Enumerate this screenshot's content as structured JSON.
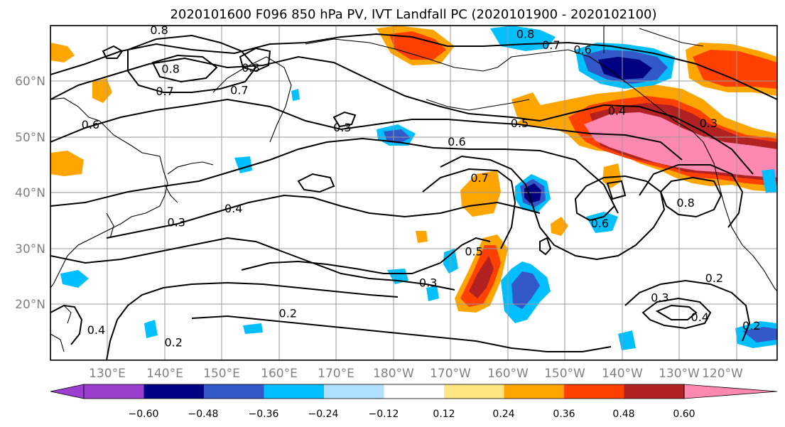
{
  "title": "2020101600 F096 850 hPa PV, IVT Landfall PC (2020101900 - 2020102100)",
  "lon_labels": [
    "130°E",
    "140°E",
    "150°E",
    "160°E",
    "170°E",
    "180°W",
    "170°W",
    "160°W",
    "150°W",
    "140°W",
    "130°W",
    "120°W"
  ],
  "lat_labels": [
    "60°N",
    "50°N",
    "40°N",
    "30°N",
    "20°N"
  ],
  "colorbar": {
    "ticks": [
      "−0.60",
      "−0.48",
      "−0.36",
      "−0.24",
      "−0.12",
      "0.12",
      "0.24",
      "0.36",
      "0.48",
      "0.60"
    ],
    "colors": [
      "#9b3fd0",
      "#000080",
      "#3358c8",
      "#00bfff",
      "#b0e0ff",
      "#ffffff",
      "#ffe680",
      "#ffa500",
      "#ff4000",
      "#b22222",
      "#ff88b0"
    ]
  },
  "contour_labels": [
    {
      "text": "0.8",
      "lon": 139.0,
      "lat": 68.5
    },
    {
      "text": "0.8",
      "lon": 141.0,
      "lat": 61.5
    },
    {
      "text": "0.7",
      "lon": 140.0,
      "lat": 57.5
    },
    {
      "text": "0.7",
      "lon": 153.0,
      "lat": 57.7
    },
    {
      "text": "0.8",
      "lon": 155.0,
      "lat": 61.7
    },
    {
      "text": "0.6",
      "lon": 127.0,
      "lat": 51.5
    },
    {
      "text": "0.3",
      "lon": 171.0,
      "lat": 51.0
    },
    {
      "text": "0.5",
      "lon": 202.0,
      "lat": 51.8
    },
    {
      "text": "0.6",
      "lon": 191.0,
      "lat": 48.5
    },
    {
      "text": "0.4",
      "lon": 219.0,
      "lat": 54.0
    },
    {
      "text": "0.3",
      "lon": 235.0,
      "lat": 51.8
    },
    {
      "text": "0.8",
      "lon": 203.0,
      "lat": 67.8
    },
    {
      "text": "0.7",
      "lon": 207.5,
      "lat": 65.8
    },
    {
      "text": "0.6",
      "lon": 213.0,
      "lat": 65.0
    },
    {
      "text": "0.7",
      "lon": 195.0,
      "lat": 42.0
    },
    {
      "text": "0.4",
      "lon": 152.0,
      "lat": 36.5
    },
    {
      "text": "0.3",
      "lon": 142.0,
      "lat": 34.0
    },
    {
      "text": "0.5",
      "lon": 194.0,
      "lat": 28.8
    },
    {
      "text": "0.3",
      "lon": 186.0,
      "lat": 23.2
    },
    {
      "text": "0.6",
      "lon": 216.0,
      "lat": 33.8
    },
    {
      "text": "0.8",
      "lon": 231.0,
      "lat": 37.5
    },
    {
      "text": "0.2",
      "lon": 161.5,
      "lat": 17.7
    },
    {
      "text": "0.2",
      "lon": 236.0,
      "lat": 24.0
    },
    {
      "text": "0.3",
      "lon": 226.5,
      "lat": 20.5
    },
    {
      "text": "0.4",
      "lon": 233.5,
      "lat": 17.0
    },
    {
      "text": "0.2",
      "lon": 242.5,
      "lat": 15.5
    },
    {
      "text": "0.4",
      "lon": 128.0,
      "lat": 14.7
    },
    {
      "text": "0.2",
      "lon": 141.5,
      "lat": 12.5
    }
  ],
  "map_extent": {
    "lon": [
      120,
      247
    ],
    "lat": [
      10,
      70
    ]
  }
}
